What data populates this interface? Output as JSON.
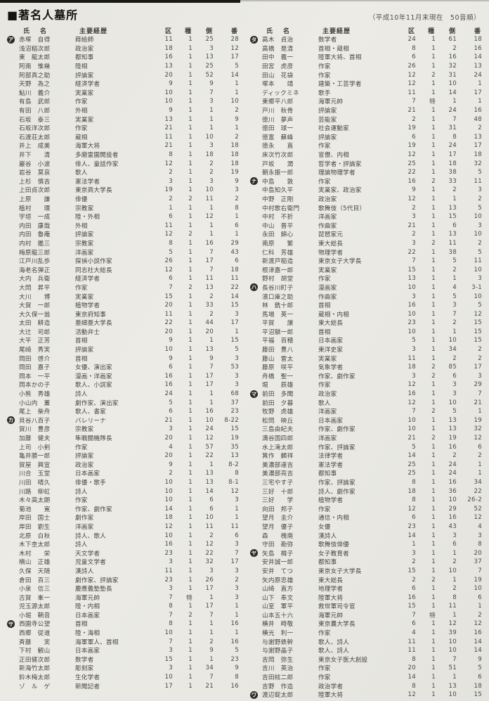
{
  "page": {
    "title": "■著名人墓所",
    "note": "（平成10年11月末現在　50音順）"
  },
  "colors": {
    "paper": "#e9e8e2",
    "ink": "#46453f",
    "badge_bg": "#2d2c28",
    "badge_fg": "#f5f4ee"
  },
  "table": {
    "headers": {
      "name": "氏　名",
      "career": "主要経歴",
      "ku": "区",
      "shu": "種",
      "gawa": "側",
      "ban": "番"
    },
    "columns": [
      "section_kana",
      "name",
      "career",
      "区",
      "種",
      "側",
      "番"
    ],
    "left_rows": [
      [
        "ア",
        "赤塚　自得",
        "蒔絵師",
        "11",
        "1",
        "25",
        "28"
      ],
      [
        "",
        "浅沼稲次郎",
        "政治家",
        "18",
        "1",
        "3",
        "12"
      ],
      [
        "",
        "東　龍太郎",
        "都知事",
        "16",
        "1",
        "13",
        "17"
      ],
      [
        "",
        "阿南　惟幾",
        "陸相",
        "13",
        "1",
        "25",
        "5"
      ],
      [
        "",
        "阿部真之助",
        "評論家",
        "20",
        "1",
        "52",
        "14"
      ],
      [
        "",
        "天野　為之",
        "経済学者",
        "9",
        "1",
        "9",
        "1"
      ],
      [
        "",
        "鮎川　義介",
        "実業家",
        "10",
        "1",
        "7",
        "1"
      ],
      [
        "",
        "有島　武郎",
        "作家",
        "10",
        "1",
        "3",
        "10"
      ],
      [
        "",
        "有田　八郎",
        "外相",
        "9",
        "1",
        "1",
        "2"
      ],
      [
        "",
        "石坂　泰三",
        "実業家",
        "13",
        "1",
        "1",
        "9"
      ],
      [
        "",
        "石坂洋次郎",
        "作家",
        "21",
        "1",
        "1",
        "1"
      ],
      [
        "",
        "石渡荘太郎",
        "蔵相",
        "11",
        "1",
        "10",
        "2"
      ],
      [
        "",
        "井上　成美",
        "海軍大将",
        "21",
        "1",
        "3",
        "18"
      ],
      [
        "",
        "井下　　清",
        "多磨霊園開設者",
        "8",
        "1",
        "18",
        "18"
      ],
      [
        "",
        "巌谷　小波",
        "俳人、童話作家",
        "12",
        "1",
        "2",
        "18"
      ],
      [
        "",
        "岩谷　莫哀",
        "歌人",
        "2",
        "1",
        "2",
        "19"
      ],
      [
        "",
        "上杉　慎吉",
        "憲法学者",
        "3",
        "1",
        "3",
        "9"
      ],
      [
        "",
        "上田貞次郎",
        "東京商大学長",
        "19",
        "1",
        "10",
        "3"
      ],
      [
        "",
        "上原　　謙",
        "俳優",
        "2",
        "2",
        "11",
        "2"
      ],
      [
        "",
        "植村　　環",
        "宗教家",
        "1",
        "1",
        "1",
        "8"
      ],
      [
        "",
        "宇垣　一成",
        "陸・外相",
        "6",
        "1",
        "12",
        "1"
      ],
      [
        "",
        "内田　康哉",
        "外相",
        "11",
        "1",
        "1",
        "6"
      ],
      [
        "",
        "内田　魯庵",
        "評論家",
        "12",
        "2",
        "1",
        "1"
      ],
      [
        "",
        "内村　鑑三",
        "宗教家",
        "8",
        "1",
        "16",
        "29"
      ],
      [
        "",
        "梅原龍三郎",
        "洋画家",
        "5",
        "1",
        "7",
        "43"
      ],
      [
        "",
        "江戸川乱歩",
        "探偵小説作家",
        "26",
        "1",
        "17",
        "6"
      ],
      [
        "",
        "海老名弾正",
        "同志社大総長",
        "12",
        "1",
        "7",
        "18"
      ],
      [
        "",
        "大内　兵衛",
        "経済学者",
        "6",
        "1",
        "11",
        "11"
      ],
      [
        "",
        "大岡　昇平",
        "作家",
        "7",
        "2",
        "13",
        "22"
      ],
      [
        "",
        "大川　　博",
        "実業家",
        "15",
        "1",
        "2",
        "14"
      ],
      [
        "",
        "大賀　一郎",
        "植物学者",
        "20",
        "1",
        "33",
        "15"
      ],
      [
        "",
        "大久保一翁",
        "東京府知事",
        "11",
        "1",
        "2",
        "3"
      ],
      [
        "",
        "太田　耕造",
        "亜細亜大学長",
        "22",
        "1",
        "44",
        "17"
      ],
      [
        "",
        "大辻　司郎",
        "活動弁士",
        "20",
        "1",
        "20",
        "1"
      ],
      [
        "",
        "大平　正芳",
        "首相",
        "9",
        "1",
        "1",
        "15"
      ],
      [
        "",
        "尾崎　秀実",
        "評論家",
        "10",
        "1",
        "13",
        "5"
      ],
      [
        "",
        "岡田　啓介",
        "首相",
        "9",
        "1",
        "9",
        "3"
      ],
      [
        "",
        "岡田　嘉子",
        "女優、演出家",
        "6",
        "1",
        "7",
        "53"
      ],
      [
        "",
        "岡本　一平",
        "漫画・洋画家",
        "16",
        "1",
        "17",
        "3"
      ],
      [
        "",
        "岡本かの子",
        "歌人、小説家",
        "16",
        "1",
        "17",
        "3"
      ],
      [
        "",
        "小熊　秀雄",
        "詩人",
        "24",
        "1",
        "1",
        "68"
      ],
      [
        "",
        "小山内　薫",
        "劇作家、演出家",
        "5",
        "1",
        "1",
        "37"
      ],
      [
        "",
        "尾上　柴舟",
        "歌人、書家",
        "6",
        "1",
        "16",
        "23"
      ],
      [
        "カ",
        "貝谷八百子",
        "バレリーナ",
        "21",
        "1",
        "10",
        "8-22"
      ],
      [
        "",
        "賀川　豊彦",
        "宗教家",
        "3",
        "1",
        "24",
        "15"
      ],
      [
        "",
        "加藤　健夫",
        "隼戦闘機隊長",
        "20",
        "1",
        "12",
        "19"
      ],
      [
        "",
        "上司　小剣",
        "作家",
        "4",
        "1",
        "57",
        "35"
      ],
      [
        "",
        "亀井勝一郎",
        "評論家",
        "20",
        "1",
        "22",
        "13"
      ],
      [
        "",
        "賀屋　興宣",
        "政治家",
        "9",
        "1",
        "1",
        "8-2"
      ],
      [
        "",
        "川合　玉堂",
        "日本画家",
        "2",
        "1",
        "13",
        "8"
      ],
      [
        "",
        "川田　晴久",
        "俳優・歌手",
        "10",
        "1",
        "13",
        "8-1"
      ],
      [
        "",
        "川路　柳虹",
        "詩人",
        "10",
        "1",
        "14",
        "12"
      ],
      [
        "",
        "木々高太朗",
        "作家",
        "10",
        "1",
        "6",
        "3"
      ],
      [
        "",
        "菊池　　寛",
        "作家、劇作家",
        "14",
        "1",
        "6",
        "1"
      ],
      [
        "",
        "岸田　国士",
        "劇作家",
        "18",
        "1",
        "10",
        "1"
      ],
      [
        "",
        "岸田　劉生",
        "洋画家",
        "12",
        "1",
        "11",
        "11"
      ],
      [
        "",
        "北原　白秋",
        "詩人、歌人",
        "10",
        "1",
        "2",
        "6"
      ],
      [
        "",
        "木下杢太郎",
        "詩人",
        "16",
        "1",
        "12",
        "3"
      ],
      [
        "",
        "木村　　栄",
        "天文学者",
        "23",
        "1",
        "22",
        "7"
      ],
      [
        "",
        "楠山　正雄",
        "児童文学者",
        "3",
        "1",
        "32",
        "17"
      ],
      [
        "",
        "久保　天随",
        "漢詩人",
        "11",
        "1",
        "3",
        "3"
      ],
      [
        "",
        "倉田　百三",
        "劇作家、評論家",
        "23",
        "1",
        "26",
        "2"
      ],
      [
        "",
        "小泉　信三",
        "慶應義塾塾長",
        "3",
        "1",
        "17",
        "3"
      ],
      [
        "",
        "古賀　峯一",
        "海軍元帥",
        "7",
        "特",
        "1",
        "3"
      ],
      [
        "",
        "児玉源太郎",
        "陸・内相",
        "8",
        "1",
        "17",
        "1"
      ],
      [
        "",
        "小堀　鞆音",
        "日本画家",
        "7",
        "2",
        "7",
        "1"
      ],
      [
        "サ",
        "西園寺公望",
        "首相",
        "8",
        "1",
        "1",
        "16"
      ],
      [
        "",
        "西郷　従道",
        "陸・海相",
        "10",
        "1",
        "1",
        "1"
      ],
      [
        "",
        "斉藤　　実",
        "海軍軍人、首相",
        "7",
        "1",
        "2",
        "16"
      ],
      [
        "",
        "下村　観山",
        "日本画家",
        "3",
        "1",
        "9",
        "5"
      ],
      [
        "",
        "正田健次郎",
        "数学者",
        "15",
        "1",
        "1",
        "23"
      ],
      [
        "",
        "新海竹太郎",
        "彫刻家",
        "3",
        "1",
        "34",
        "9"
      ],
      [
        "",
        "鈴木梅太郎",
        "生化学者",
        "10",
        "1",
        "7",
        "8"
      ],
      [
        "",
        "ゾ　ル　ゲ",
        "新聞記者",
        "17",
        "1",
        "21",
        "16"
      ]
    ],
    "right_rows": [
      [
        "タ",
        "高木　貞治",
        "数学者",
        "24",
        "1",
        "61",
        "18"
      ],
      [
        "",
        "高橋　是清",
        "首相・蔵相",
        "8",
        "1",
        "2",
        "16"
      ],
      [
        "",
        "田中　義一",
        "陸軍大将、首相",
        "6",
        "1",
        "16",
        "14"
      ],
      [
        "",
        "田宮　虎彦",
        "作家",
        "26",
        "1",
        "32",
        "13"
      ],
      [
        "",
        "田山　花袋",
        "作家",
        "12",
        "2",
        "31",
        "24"
      ],
      [
        "",
        "塚本　　靖",
        "建築・工芸学者",
        "12",
        "1",
        "10",
        "1"
      ],
      [
        "",
        "ディックミネ",
        "歌手",
        "11",
        "1",
        "14",
        "17"
      ],
      [
        "",
        "東郷平八郎",
        "海軍元帥",
        "7",
        "特",
        "1",
        "1"
      ],
      [
        "",
        "戸川　秋骨",
        "評論家",
        "21",
        "1",
        "24",
        "16"
      ],
      [
        "",
        "徳川　夢声",
        "芸能家",
        "2",
        "1",
        "7",
        "48"
      ],
      [
        "",
        "徳田　球一",
        "社会運動家",
        "19",
        "1",
        "31",
        "2"
      ],
      [
        "",
        "徳富　蘇峰",
        "評論家",
        "6",
        "1",
        "8",
        "13"
      ],
      [
        "",
        "徳永　　直",
        "作家",
        "19",
        "1",
        "24",
        "17"
      ],
      [
        "",
        "床次竹次郎",
        "官僚、内相",
        "12",
        "1",
        "17",
        "18"
      ],
      [
        "",
        "戸坂　　潤",
        "哲学者・評論家",
        "25",
        "1",
        "18",
        "32"
      ],
      [
        "",
        "朝永振一郎",
        "理論物理学者",
        "22",
        "1",
        "38",
        "5"
      ],
      [
        "ナ",
        "中島　　敦",
        "作家",
        "16",
        "2",
        "33",
        "11"
      ],
      [
        "",
        "中島知久平",
        "実業家、政治家",
        "9",
        "1",
        "2",
        "3"
      ],
      [
        "",
        "中野　正剛",
        "政治家",
        "12",
        "1",
        "1",
        "2"
      ],
      [
        "",
        "中村歌右衛門",
        "歌舞伎（5代目）",
        "2",
        "1",
        "13",
        "5"
      ],
      [
        "",
        "中村　不折",
        "洋画家",
        "3",
        "1",
        "15",
        "10"
      ],
      [
        "",
        "中山　晋平",
        "作曲家",
        "21",
        "1",
        "6",
        "3"
      ],
      [
        "",
        "永田　錦心",
        "琵琶家元",
        "2",
        "1",
        "13",
        "10"
      ],
      [
        "",
        "南原　　繁",
        "東大総長",
        "3",
        "2",
        "11",
        "2"
      ],
      [
        "",
        "仁科　芳雄",
        "物理学者",
        "22",
        "1",
        "38",
        "5"
      ],
      [
        "",
        "新渡戸稲造",
        "東京女子大学長",
        "7",
        "1",
        "5",
        "11"
      ],
      [
        "",
        "根津嘉一郎",
        "実業家",
        "15",
        "1",
        "2",
        "10"
      ],
      [
        "",
        "野村　胡堂",
        "作家",
        "13",
        "1",
        "1",
        "3"
      ],
      [
        "ハ",
        "長谷川町子",
        "漫画家",
        "10",
        "1",
        "4",
        "3-1"
      ],
      [
        "",
        "濱口庫之助",
        "作曲家",
        "3",
        "1",
        "5",
        "10"
      ],
      [
        "",
        "林　銑十郎",
        "首相",
        "16",
        "1",
        "3",
        "5"
      ],
      [
        "",
        "馬場　英一",
        "蔵相・内相",
        "10",
        "1",
        "7",
        "12"
      ],
      [
        "",
        "平賀　　譲",
        "東大総長",
        "23",
        "1",
        "2",
        "15"
      ],
      [
        "",
        "平沼騏一郎",
        "首相",
        "10",
        "1",
        "1",
        "15"
      ],
      [
        "",
        "平福　百穂",
        "日本画家",
        "5",
        "1",
        "10",
        "15"
      ],
      [
        "",
        "藤田　豊八",
        "東洋史家",
        "3",
        "1",
        "34",
        "2"
      ],
      [
        "",
        "藤山　雷太",
        "実業家",
        "11",
        "1",
        "2",
        "2"
      ],
      [
        "",
        "藤原　咲平",
        "気象学者",
        "18",
        "2",
        "85",
        "17"
      ],
      [
        "",
        "舟橋　聖一",
        "作家、劇作家",
        "3",
        "2",
        "6",
        "3"
      ],
      [
        "",
        "堀　　辰雄",
        "作家",
        "12",
        "1",
        "3",
        "29"
      ],
      [
        "マ",
        "前田　多聞",
        "政治家",
        "16",
        "1",
        "3",
        "7"
      ],
      [
        "",
        "前田　夕暮",
        "歌人",
        "12",
        "1",
        "10",
        "21"
      ],
      [
        "",
        "牧野　虎雄",
        "洋画家",
        "7",
        "2",
        "5",
        "1"
      ],
      [
        "",
        "松岡　映丘",
        "日本画家",
        "10",
        "1",
        "13",
        "19"
      ],
      [
        "",
        "三島由紀夫",
        "作家、劇作家",
        "10",
        "1",
        "13",
        "32"
      ],
      [
        "",
        "満谷国四郎",
        "洋画家",
        "21",
        "2",
        "19",
        "12"
      ],
      [
        "",
        "水上滝太郎",
        "作家、評論家",
        "5",
        "1",
        "16",
        "6"
      ],
      [
        "",
        "箕作　麟祥",
        "法律学者",
        "14",
        "1",
        "2",
        "2"
      ],
      [
        "",
        "美濃部達吉",
        "憲法学者",
        "25",
        "1",
        "24",
        "1"
      ],
      [
        "",
        "美濃部亮吉",
        "都知事",
        "25",
        "1",
        "24",
        "1"
      ],
      [
        "",
        "三宅やす子",
        "作家、評論家",
        "8",
        "1",
        "16",
        "34"
      ],
      [
        "",
        "三好　十郎",
        "詩人、劇作家",
        "18",
        "1",
        "36",
        "22"
      ],
      [
        "",
        "三好　　学",
        "植物学者",
        "8",
        "1",
        "10",
        "26-2"
      ],
      [
        "",
        "向田　邦子",
        "作家",
        "12",
        "1",
        "29",
        "52"
      ],
      [
        "",
        "望月　圭介",
        "通信・内相",
        "6",
        "1",
        "16",
        "12"
      ],
      [
        "",
        "望月　優子",
        "女優",
        "23",
        "1",
        "43",
        "4"
      ],
      [
        "",
        "森　　槐南",
        "漢詩人",
        "14",
        "1",
        "3",
        "3"
      ],
      [
        "",
        "守田　勘弥",
        "歌舞伎俳優",
        "1",
        "1",
        "6",
        "8"
      ],
      [
        "ヤ",
        "矢島　楫子",
        "女子教育者",
        "3",
        "1",
        "1",
        "20"
      ],
      [
        "",
        "安井誠一郎",
        "都知事",
        "2",
        "1",
        "2",
        "37"
      ],
      [
        "",
        "安井　てつ",
        "東京女子大学長",
        "15",
        "1",
        "10",
        "7"
      ],
      [
        "",
        "矢内原忠雄",
        "東大総長",
        "2",
        "2",
        "1",
        "19"
      ],
      [
        "",
        "山崎　直方",
        "地理学者",
        "6",
        "1",
        "2",
        "10"
      ],
      [
        "",
        "山下　奉文",
        "陸軍大将",
        "16",
        "1",
        "8",
        "6"
      ],
      [
        "",
        "山室　軍平",
        "救世軍司令官",
        "15",
        "1",
        "11",
        "1"
      ],
      [
        "",
        "山本五十六",
        "海軍元帥",
        "7",
        "特",
        "1",
        "2"
      ],
      [
        "",
        "横井　時敬",
        "東京農大学長",
        "6",
        "1",
        "12",
        "12"
      ],
      [
        "",
        "横光　利一",
        "作家",
        "4",
        "1",
        "39",
        "16"
      ],
      [
        "",
        "与謝野鉄幹",
        "歌人、詩人",
        "11",
        "1",
        "10",
        "14"
      ],
      [
        "",
        "与謝野晶子",
        "歌人、詩人",
        "11",
        "1",
        "10",
        "14"
      ],
      [
        "",
        "吉岡　弥生",
        "東京女子医大創設",
        "8",
        "1",
        "7",
        "9"
      ],
      [
        "",
        "吉川　英治",
        "作家",
        "20",
        "1",
        "51",
        "5"
      ],
      [
        "",
        "吉田絃二郎",
        "作家",
        "14",
        "1",
        "1",
        "6"
      ],
      [
        "",
        "吉野　作造",
        "政治学者",
        "8",
        "1",
        "13",
        "18"
      ],
      [
        "ワ",
        "渡辺錠太郎",
        "陸軍大将",
        "12",
        "1",
        "10",
        "15"
      ]
    ]
  }
}
